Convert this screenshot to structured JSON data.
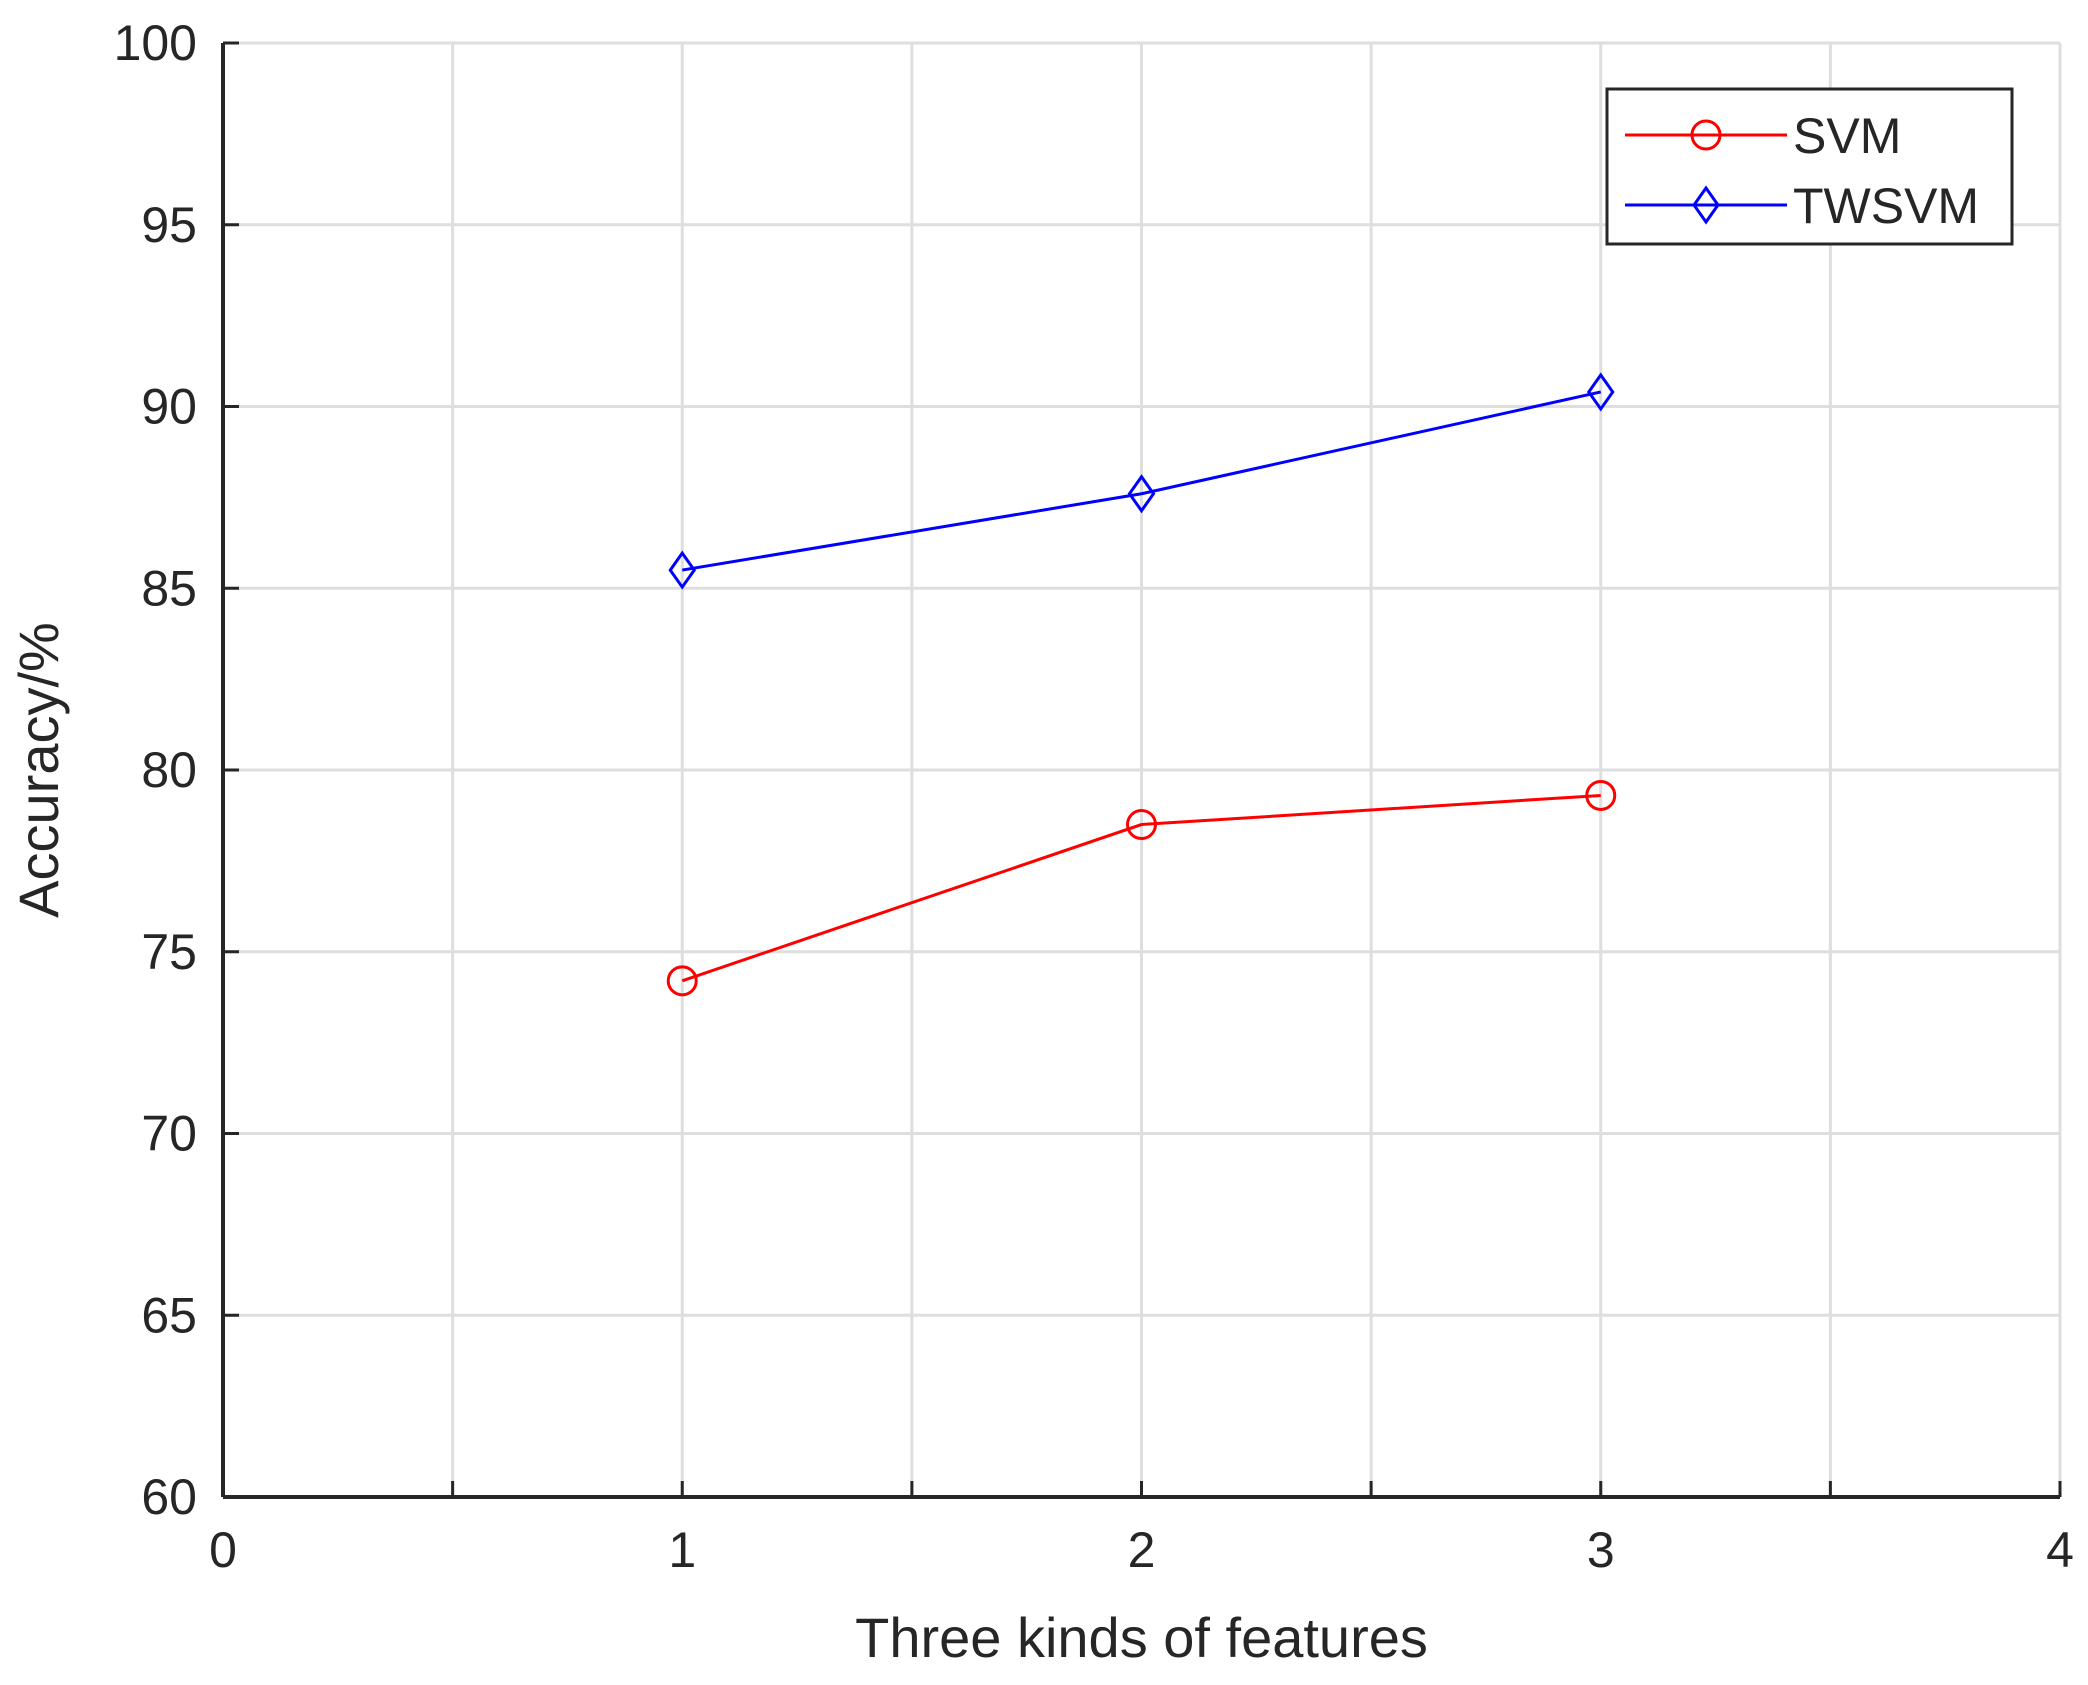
{
  "chart_data": {
    "type": "line",
    "title": "",
    "xlabel": "Three kinds of features",
    "ylabel": "Accuracy/%",
    "xlim": [
      0,
      4
    ],
    "ylim": [
      60,
      100
    ],
    "xticks": [
      0,
      0.5,
      1,
      1.5,
      2,
      2.5,
      3,
      3.5,
      4
    ],
    "xtick_labels": [
      "0",
      "",
      "1",
      "",
      "2",
      "",
      "3",
      "",
      "4"
    ],
    "yticks": [
      60,
      65,
      70,
      75,
      80,
      85,
      90,
      95,
      100
    ],
    "ytick_labels": [
      "60",
      "65",
      "70",
      "75",
      "80",
      "85",
      "90",
      "95",
      "100"
    ],
    "grid": true,
    "legend_position": "top-right",
    "x": [
      1,
      2,
      3
    ],
    "series": [
      {
        "name": "SVM",
        "values": [
          74.2,
          78.5,
          79.3
        ],
        "color": "#ff0000",
        "marker": "circle"
      },
      {
        "name": "TWSVM",
        "values": [
          85.5,
          87.6,
          90.4
        ],
        "color": "#0000ff",
        "marker": "diamond"
      }
    ]
  }
}
